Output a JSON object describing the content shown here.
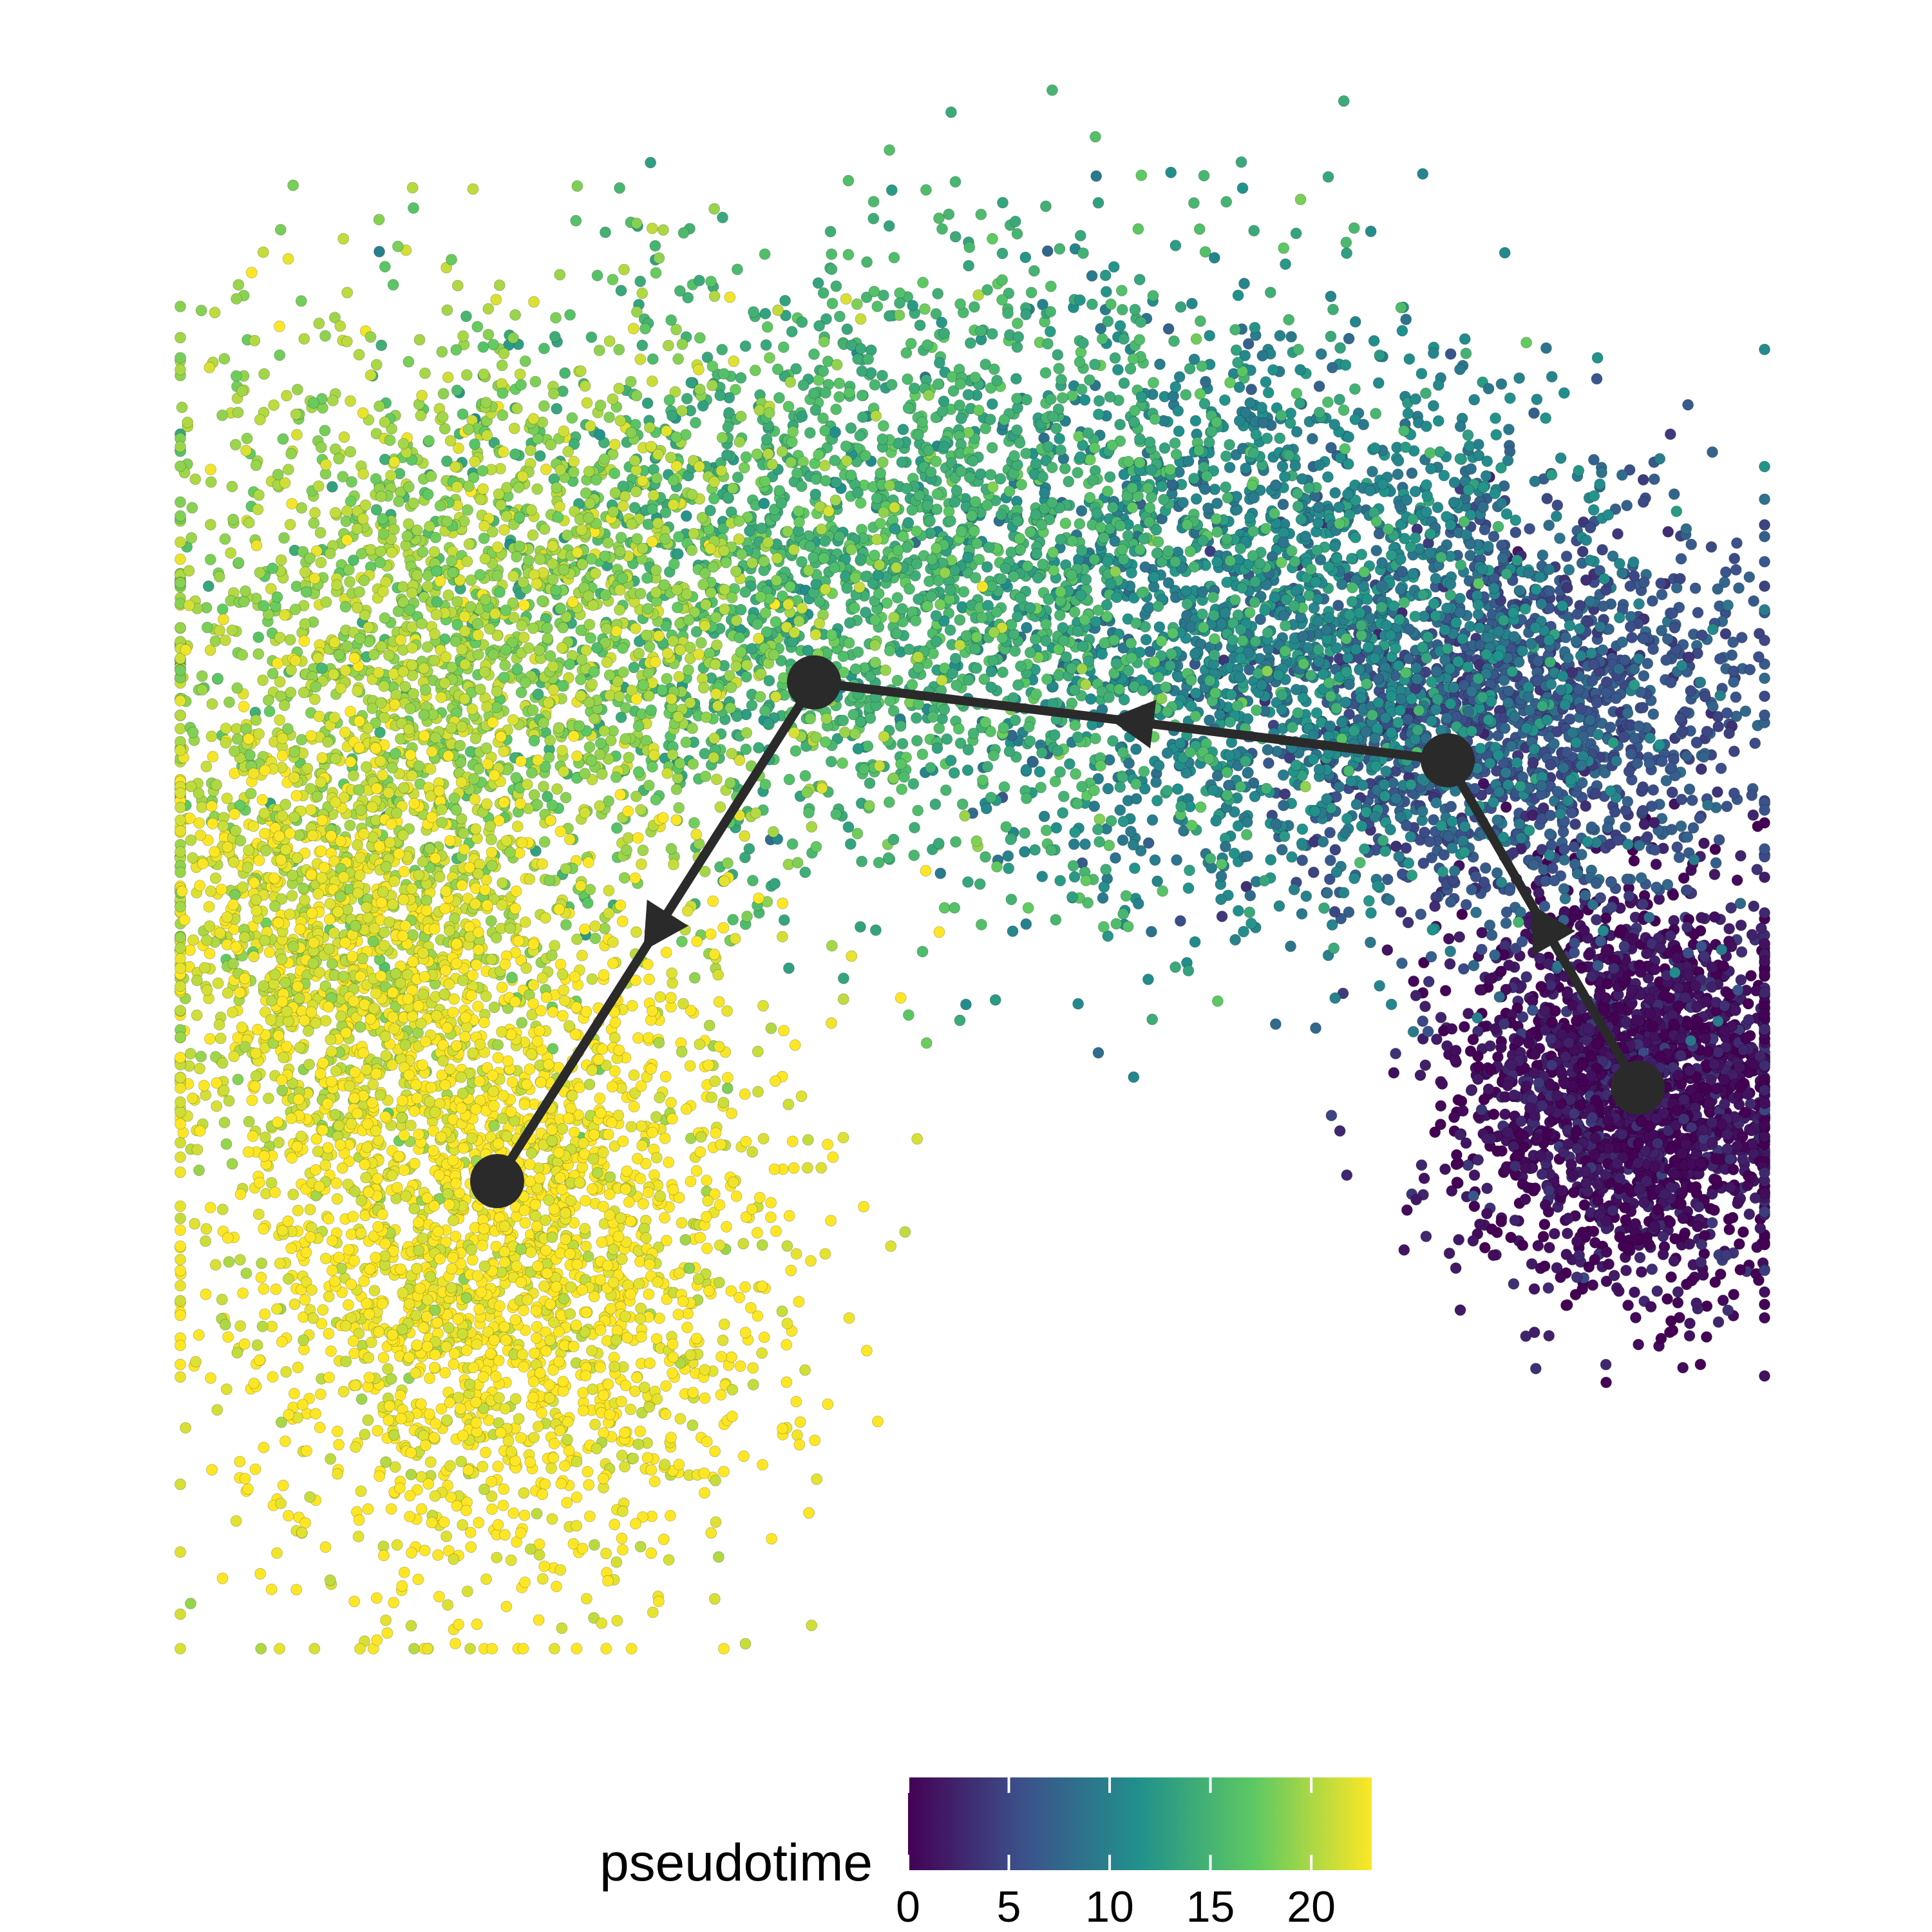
{
  "chart_data": {
    "type": "scatter",
    "title": "",
    "xlabel": "",
    "ylabel": "",
    "grid": false,
    "axes_visible": false,
    "color_variable": "pseudotime",
    "colormap": [
      "#440154",
      "#3b528b",
      "#21918c",
      "#5ec962",
      "#fde725"
    ],
    "legend": {
      "title": "pseudotime",
      "placement": "bottom",
      "range": [
        0,
        23
      ],
      "ticks": [
        {
          "value": 0,
          "label": "0"
        },
        {
          "value": 5,
          "label": "5"
        },
        {
          "value": 10,
          "label": "10"
        },
        {
          "value": 15,
          "label": "15"
        },
        {
          "value": 20,
          "label": "20"
        }
      ]
    },
    "point_clusters": [
      {
        "x": 0.92,
        "y": 0.36,
        "spread_x": 0.055,
        "spread_y": 0.06,
        "count": 2400,
        "pseudotime": 1.0
      },
      {
        "x": 0.84,
        "y": 0.6,
        "spread_x": 0.075,
        "spread_y": 0.065,
        "count": 1600,
        "pseudotime": 6.0
      },
      {
        "x": 0.7,
        "y": 0.66,
        "spread_x": 0.1,
        "spread_y": 0.09,
        "count": 1900,
        "pseudotime": 10.5
      },
      {
        "x": 0.46,
        "y": 0.7,
        "spread_x": 0.13,
        "spread_y": 0.095,
        "count": 2300,
        "pseudotime": 15.0
      },
      {
        "x": 0.2,
        "y": 0.66,
        "spread_x": 0.11,
        "spread_y": 0.1,
        "count": 2100,
        "pseudotime": 19.5
      },
      {
        "x": 0.1,
        "y": 0.46,
        "spread_x": 0.06,
        "spread_y": 0.08,
        "count": 1400,
        "pseudotime": 21.5
      },
      {
        "x": 0.2,
        "y": 0.26,
        "spread_x": 0.085,
        "spread_y": 0.11,
        "count": 2500,
        "pseudotime": 23.0
      }
    ],
    "trajectory": {
      "nodes": [
        {
          "x": 0.92,
          "y": 0.36
        },
        {
          "x": 0.8,
          "y": 0.57
        },
        {
          "x": 0.4,
          "y": 0.62
        },
        {
          "x": 0.2,
          "y": 0.3
        }
      ],
      "edges": [
        [
          0,
          1
        ],
        [
          1,
          2
        ],
        [
          2,
          3
        ]
      ],
      "direction": "decreasing-pseudotime"
    }
  }
}
